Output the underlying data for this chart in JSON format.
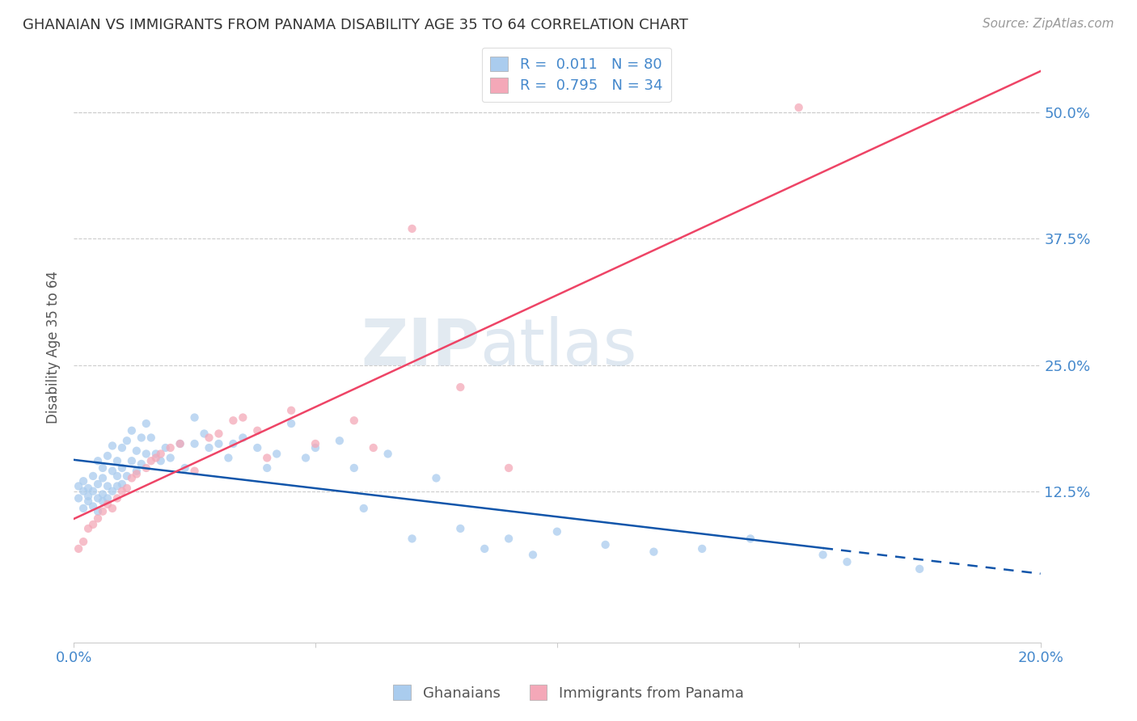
{
  "title": "GHANAIAN VS IMMIGRANTS FROM PANAMA DISABILITY AGE 35 TO 64 CORRELATION CHART",
  "source_text": "Source: ZipAtlas.com",
  "ylabel": "Disability Age 35 to 64",
  "xlim": [
    0.0,
    0.2
  ],
  "ylim": [
    -0.025,
    0.56
  ],
  "yticks_right": [
    0.125,
    0.25,
    0.375,
    0.5
  ],
  "ytick_labels_right": [
    "12.5%",
    "25.0%",
    "37.5%",
    "50.0%"
  ],
  "ghanaian_color": "#aaccee",
  "panama_color": "#f4a8b8",
  "ghanaian_line_color": "#1155aa",
  "panama_line_color": "#ee4466",
  "R_ghanaian": 0.011,
  "N_ghanaian": 80,
  "R_panama": 0.795,
  "N_panama": 34,
  "legend_label_ghanaian": "Ghanaians",
  "legend_label_panama": "Immigrants from Panama",
  "watermark": "ZIPatlas",
  "background_color": "#ffffff",
  "grid_color": "#cccccc",
  "axis_label_color": "#4488cc",
  "ghanaian_x": [
    0.001,
    0.001,
    0.002,
    0.002,
    0.002,
    0.003,
    0.003,
    0.003,
    0.004,
    0.004,
    0.004,
    0.005,
    0.005,
    0.005,
    0.005,
    0.006,
    0.006,
    0.006,
    0.006,
    0.007,
    0.007,
    0.007,
    0.008,
    0.008,
    0.008,
    0.009,
    0.009,
    0.009,
    0.01,
    0.01,
    0.01,
    0.011,
    0.011,
    0.012,
    0.012,
    0.013,
    0.013,
    0.014,
    0.014,
    0.015,
    0.015,
    0.016,
    0.017,
    0.018,
    0.019,
    0.02,
    0.022,
    0.023,
    0.025,
    0.025,
    0.027,
    0.028,
    0.03,
    0.032,
    0.033,
    0.035,
    0.038,
    0.04,
    0.042,
    0.045,
    0.048,
    0.05,
    0.055,
    0.058,
    0.06,
    0.065,
    0.07,
    0.075,
    0.08,
    0.085,
    0.09,
    0.095,
    0.1,
    0.11,
    0.12,
    0.13,
    0.14,
    0.155,
    0.16,
    0.175
  ],
  "ghanaian_y": [
    0.13,
    0.118,
    0.125,
    0.108,
    0.135,
    0.12,
    0.115,
    0.128,
    0.14,
    0.11,
    0.125,
    0.155,
    0.118,
    0.132,
    0.105,
    0.148,
    0.138,
    0.122,
    0.115,
    0.16,
    0.13,
    0.118,
    0.17,
    0.145,
    0.125,
    0.155,
    0.14,
    0.13,
    0.168,
    0.148,
    0.132,
    0.175,
    0.14,
    0.185,
    0.155,
    0.165,
    0.145,
    0.178,
    0.152,
    0.192,
    0.162,
    0.178,
    0.162,
    0.155,
    0.168,
    0.158,
    0.172,
    0.148,
    0.198,
    0.172,
    0.182,
    0.168,
    0.172,
    0.158,
    0.172,
    0.178,
    0.168,
    0.148,
    0.162,
    0.192,
    0.158,
    0.168,
    0.175,
    0.148,
    0.108,
    0.162,
    0.078,
    0.138,
    0.088,
    0.068,
    0.078,
    0.062,
    0.085,
    0.072,
    0.065,
    0.068,
    0.078,
    0.062,
    0.055,
    0.048
  ],
  "panama_x": [
    0.001,
    0.002,
    0.003,
    0.004,
    0.005,
    0.006,
    0.007,
    0.008,
    0.009,
    0.01,
    0.011,
    0.012,
    0.013,
    0.015,
    0.016,
    0.017,
    0.018,
    0.02,
    0.022,
    0.025,
    0.028,
    0.03,
    0.033,
    0.035,
    0.038,
    0.04,
    0.045,
    0.05,
    0.058,
    0.062,
    0.07,
    0.08,
    0.09,
    0.15
  ],
  "panama_y": [
    0.068,
    0.075,
    0.088,
    0.092,
    0.098,
    0.105,
    0.112,
    0.108,
    0.118,
    0.125,
    0.128,
    0.138,
    0.142,
    0.148,
    0.155,
    0.158,
    0.162,
    0.168,
    0.172,
    0.145,
    0.178,
    0.182,
    0.195,
    0.198,
    0.185,
    0.158,
    0.205,
    0.172,
    0.195,
    0.168,
    0.385,
    0.228,
    0.148,
    0.505
  ]
}
